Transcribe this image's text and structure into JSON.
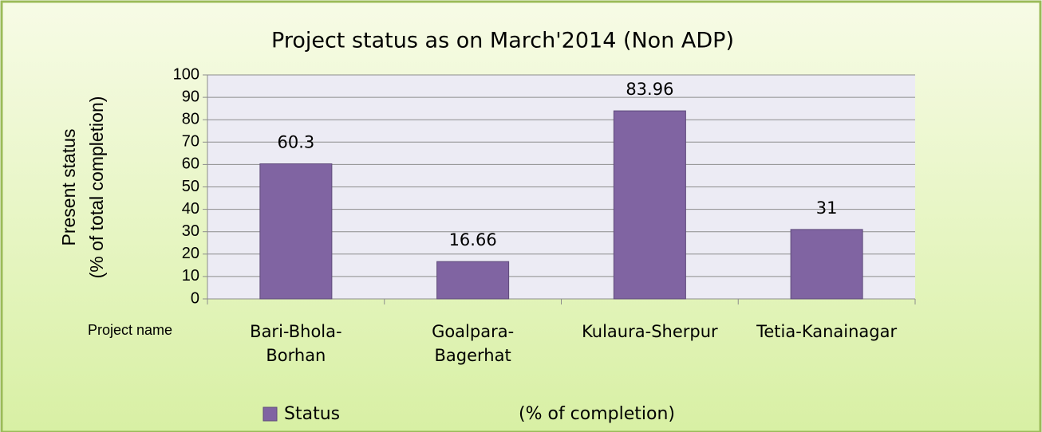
{
  "chart_data": {
    "type": "bar",
    "title": "Project status as on  March'2014 (Non ADP)",
    "ylabel": "Present status",
    "ylabel_sub": "(% of total completion)",
    "xlabel": "Project name",
    "categories": [
      "Bari-Bhola-Borhan",
      "Goalpara-Bagerhat",
      "Kulaura-Sherpur",
      "Tetia-Kanainagar"
    ],
    "series": [
      {
        "name": "Status",
        "color": "#8064a2",
        "values": [
          60.3,
          16.66,
          83.96,
          31
        ]
      }
    ],
    "legend_note": "(% of completion)",
    "ylim": [
      0,
      100
    ],
    "yticks": [
      0,
      10,
      20,
      30,
      40,
      50,
      60,
      70,
      80,
      90,
      100
    ],
    "grid": true
  }
}
